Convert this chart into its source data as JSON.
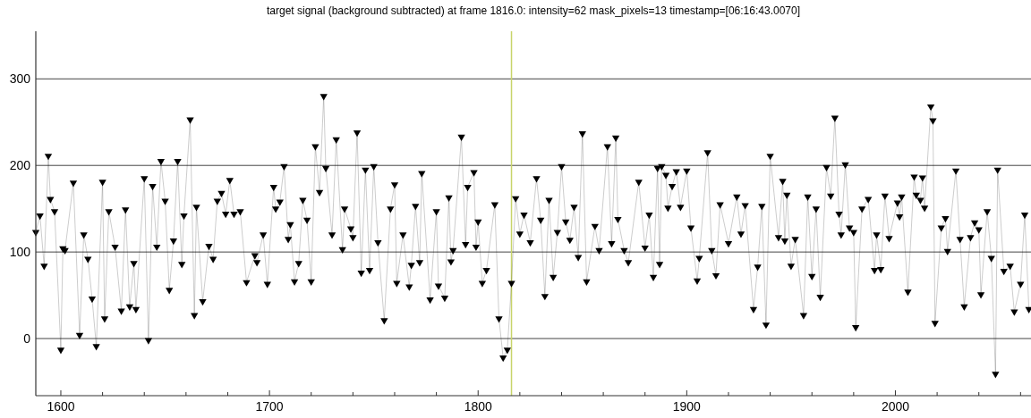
{
  "chart_data": {
    "type": "line",
    "title": "target signal (background subtracted) at frame 1816.0: intensity=62 mask_pixels=13 timestamp=[06:16:43.0070]",
    "x": [
      1588,
      1590,
      1592,
      1594,
      1595,
      1597,
      1600,
      1601,
      1602,
      1606,
      1609,
      1611,
      1613,
      1615,
      1617,
      1620,
      1621,
      1623,
      1626,
      1629,
      1631,
      1633,
      1635,
      1636,
      1640,
      1642,
      1644,
      1646,
      1648,
      1650,
      1652,
      1654,
      1656,
      1658,
      1659,
      1662,
      1664,
      1665,
      1668,
      1671,
      1673,
      1675,
      1677,
      1679,
      1681,
      1683,
      1686,
      1689,
      1693,
      1694,
      1697,
      1699,
      1702,
      1703,
      1705,
      1707,
      1709,
      1710,
      1712,
      1714,
      1716,
      1718,
      1720,
      1722,
      1724,
      1726,
      1727,
      1730,
      1732,
      1735,
      1736,
      1739,
      1740,
      1742,
      1744,
      1746,
      1748,
      1750,
      1752,
      1755,
      1758,
      1760,
      1761,
      1764,
      1767,
      1768,
      1770,
      1772,
      1773,
      1777,
      1780,
      1781,
      1784,
      1786,
      1787,
      1788,
      1792,
      1794,
      1795,
      1798,
      1799,
      1800,
      1802,
      1804,
      1808,
      1810,
      1812,
      1814,
      1816,
      1818,
      1820,
      1822,
      1825,
      1828,
      1830,
      1832,
      1834,
      1836,
      1838,
      1840,
      1842,
      1844,
      1846,
      1848,
      1850,
      1852,
      1856,
      1858,
      1862,
      1864,
      1866,
      1867,
      1870,
      1872,
      1877,
      1880,
      1882,
      1884,
      1886,
      1887,
      1888,
      1890,
      1891,
      1893,
      1895,
      1897,
      1900,
      1902,
      1905,
      1906,
      1910,
      1912,
      1914,
      1916,
      1920,
      1924,
      1926,
      1928,
      1932,
      1934,
      1936,
      1938,
      1940,
      1944,
      1946,
      1947,
      1948,
      1950,
      1952,
      1956,
      1958,
      1960,
      1962,
      1964,
      1967,
      1969,
      1971,
      1973,
      1974,
      1976,
      1978,
      1980,
      1981,
      1984,
      1987,
      1990,
      1991,
      1993,
      1995,
      1997,
      2001,
      2002,
      2003,
      2006,
      2009,
      2010,
      2012,
      2013,
      2014,
      2017,
      2018,
      2019,
      2022,
      2024,
      2025,
      2029,
      2031,
      2033,
      2036,
      2038,
      2040,
      2041,
      2044,
      2046,
      2048,
      2049,
      2052,
      2055,
      2057,
      2060,
      2062,
      2064
    ],
    "series": [
      {
        "color": "#000000",
        "values": [
          123,
          142,
          84,
          211,
          161,
          147,
          -13,
          104,
          102,
          180,
          4,
          120,
          92,
          46,
          -9,
          181,
          23,
          147,
          106,
          32,
          149,
          37,
          87,
          34,
          185,
          -2,
          176,
          106,
          205,
          159,
          56,
          113,
          205,
          86,
          142,
          253,
          27,
          152,
          43,
          107,
          92,
          159,
          168,
          144,
          183,
          144,
          147,
          65,
          96,
          88,
          120,
          63,
          175,
          150,
          158,
          199,
          115,
          132,
          66,
          87,
          160,
          137,
          66,
          222,
          169,
          280,
          197,
          120,
          230,
          103,
          150,
          127,
          117,
          238,
          76,
          195,
          79,
          199,
          111,
          21,
          150,
          178,
          64,
          120,
          60,
          85,
          153,
          88,
          191,
          45,
          147,
          61,
          47,
          163,
          89,
          102,
          233,
          109,
          175,
          192,
          106,
          135,
          64,
          79,
          155,
          23,
          -22,
          -13,
          64,
          162,
          121,
          143,
          111,
          185,
          137,
          49,
          160,
          71,
          123,
          199,
          135,
          114,
          152,
          94,
          237,
          66,
          130,
          102,
          222,
          110,
          232,
          138,
          102,
          88,
          181,
          105,
          143,
          71,
          197,
          86,
          199,
          189,
          151,
          176,
          193,
          152,
          194,
          128,
          67,
          93,
          215,
          102,
          73,
          155,
          110,
          164,
          121,
          154,
          34,
          83,
          153,
          16,
          211,
          117,
          182,
          113,
          166,
          84,
          115,
          27,
          164,
          72,
          150,
          48,
          198,
          165,
          255,
          144,
          120,
          201,
          128,
          123,
          13,
          150,
          161,
          79,
          120,
          80,
          165,
          116,
          157,
          141,
          164,
          54,
          187,
          166,
          160,
          186,
          151,
          268,
          252,
          18,
          128,
          139,
          101,
          194,
          115,
          37,
          117,
          134,
          126,
          51,
          147,
          93,
          -41,
          195,
          78,
          84,
          31,
          63,
          143,
          34
        ]
      }
    ],
    "xlim": [
      1588,
      2065
    ],
    "ylim": [
      -66,
      355
    ],
    "xticks": [
      1600,
      {
        "value": 1620,
        "label": null
      },
      {
        "value": 1640,
        "label": null
      },
      {
        "value": 1660,
        "label": null
      },
      {
        "value": 1680,
        "label": null
      },
      1700,
      {
        "value": 1720,
        "label": null
      },
      {
        "value": 1740,
        "label": null
      },
      {
        "value": 1760,
        "label": null
      },
      {
        "value": 1780,
        "label": null
      },
      1800,
      {
        "value": 1820,
        "label": null
      },
      {
        "value": 1840,
        "label": null
      },
      {
        "value": 1860,
        "label": null
      },
      {
        "value": 1880,
        "label": null
      },
      1900,
      {
        "value": 1920,
        "label": null
      },
      {
        "value": 1940,
        "label": null
      },
      {
        "value": 1960,
        "label": null
      },
      {
        "value": 1980,
        "label": null
      },
      2000,
      {
        "value": 2020,
        "label": null
      },
      {
        "value": 2040,
        "label": null
      },
      {
        "value": 2060,
        "label": null
      }
    ],
    "yticks": [
      0,
      100,
      200,
      300
    ],
    "grid": "y",
    "marker": "triangle",
    "line_style": "solid",
    "ref_lines": [
      {
        "axis": "x",
        "value": 1816,
        "color": "#c8d46a"
      }
    ]
  }
}
